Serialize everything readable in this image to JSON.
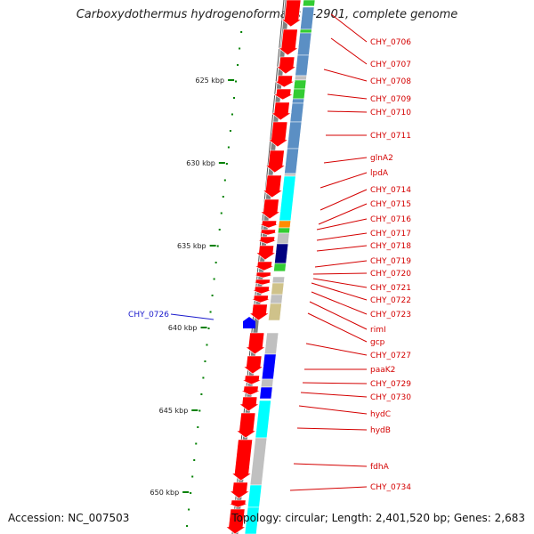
{
  "title": "Carboxydothermus hydrogenoformans Z-2901, complete genome",
  "accession_text": "Accession: NC_007503",
  "topology_text": "Topology: circular; Length: 2,401,520 bp; Genes: 2,683",
  "colors": {
    "forward_gene": "#ff0000",
    "reverse_gene": "#0000ff",
    "label_red": "#d40000",
    "label_blue": "#1a1acc",
    "tick_green": "#008000",
    "backbone": "#808080",
    "cog_steelblue": "#5b8fc4",
    "cog_green": "#33cc33",
    "cog_cyan": "#00ffff",
    "cog_gray": "#c0c0c0",
    "cog_navy": "#000080",
    "cog_khaki": "#cfc28a",
    "cog_blue": "#0000ff",
    "cog_orange": "#ff8c00"
  },
  "scale_labels": [
    "625 kbp",
    "630 kbp",
    "635 kbp",
    "640 kbp",
    "645 kbp",
    "650 kbp"
  ],
  "gene_labels": [
    "CHY_0706",
    "CHY_0707",
    "CHY_0708",
    "CHY_0709",
    "CHY_0710",
    "CHY_0711",
    "glnA2",
    "lpdA",
    "CHY_0714",
    "CHY_0715",
    "CHY_0716",
    "CHY_0717",
    "CHY_0718",
    "CHY_0719",
    "CHY_0720",
    "CHY_0721",
    "CHY_0722",
    "CHY_0723",
    "rimI",
    "gcp",
    "CHY_0727",
    "paaK2",
    "CHY_0729",
    "CHY_0730",
    "hydC",
    "hydB",
    "fdhA",
    "CHY_0734"
  ],
  "reverse_gene_label": "CHY_0726"
}
